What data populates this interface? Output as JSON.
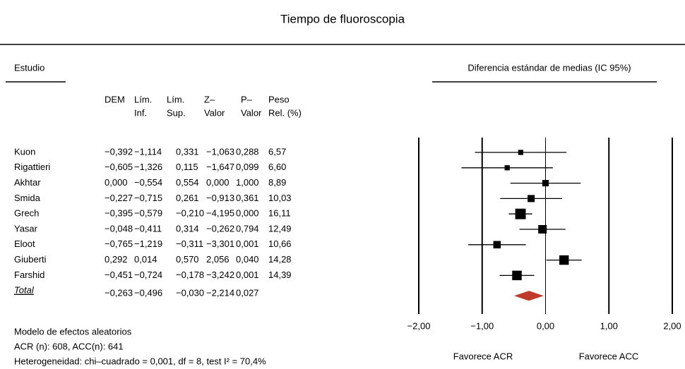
{
  "chart_data": {
    "type": "forest",
    "title": "Tiempo de fluoroscopia",
    "study_header": "Estudio",
    "plot_header": "Diferencia estándar de medias (IC 95%)",
    "columns": [
      [
        "DEM"
      ],
      [
        "Lím.",
        "Inf."
      ],
      [
        "Lím.",
        "Sup."
      ],
      [
        "Z–",
        "Valor"
      ],
      [
        "P–",
        "Valor"
      ],
      [
        "Peso",
        "Rel. (%)"
      ]
    ],
    "categories": [
      "Kuon",
      "Rigattieri",
      "Akhtar",
      "Smida",
      "Grech",
      "Yasar",
      "Eloot",
      "Giuberti",
      "Farshid"
    ],
    "series": [
      {
        "values": [
          -0.392,
          -0.605,
          0.0,
          -0.227,
          -0.395,
          -0.048,
          -0.765,
          0.292,
          -0.451
        ],
        "value_labels": [
          "−0,392",
          "−0,605",
          "0,000",
          "−0,227",
          "−0,395",
          "−0,048",
          "−0,765",
          "0,292",
          "−0,451"
        ]
      },
      {
        "values": [
          -1.114,
          -1.326,
          -0.554,
          -0.715,
          -0.579,
          -0.411,
          -1.219,
          0.014,
          -0.724
        ],
        "value_labels": [
          "−1,114",
          "−1,326",
          "−0,554",
          "−0,715",
          "−0,579",
          "−0,411",
          "−1,219",
          "0,014",
          "−0,724"
        ]
      },
      {
        "values": [
          0.331,
          0.115,
          0.554,
          0.261,
          -0.21,
          0.314,
          -0.311,
          0.57,
          -0.178
        ],
        "value_labels": [
          "0,331",
          "0,115",
          "0,554",
          "0,261",
          "−0,210",
          "0,314",
          "−0,311",
          "0,570",
          "−0,178"
        ]
      },
      {
        "values": [
          -1.063,
          -1.647,
          0.0,
          -0.913,
          -4.195,
          -0.262,
          -3.301,
          2.056,
          -3.242
        ],
        "value_labels": [
          "−1,063",
          "−1,647",
          "0,000",
          "−0,913",
          "−4,195",
          "−0,262",
          "−3,301",
          "2,056",
          "−3,242"
        ]
      },
      {
        "values": [
          0.288,
          0.099,
          1.0,
          0.361,
          0.0,
          0.794,
          0.001,
          0.04,
          0.001
        ],
        "value_labels": [
          "0,288",
          "0,099",
          "1,000",
          "0,361",
          "0,000",
          "0,794",
          "0,001",
          "0,040",
          "0,001"
        ]
      },
      {
        "values": [
          6.57,
          6.6,
          8.89,
          10.03,
          16.11,
          12.49,
          10.66,
          14.28,
          14.39
        ],
        "value_labels": [
          "6,57",
          "6,60",
          "8,89",
          "10,03",
          "16,11",
          "12,49",
          "10,66",
          "14,28",
          "14,39"
        ]
      }
    ],
    "total": {
      "label": "Total",
      "values": [
        -0.263,
        -0.496,
        -0.03,
        -2.214,
        0.027
      ],
      "value_labels": [
        "−0,263",
        "−0,496",
        "−0,030",
        "−2,214",
        "0,027"
      ]
    },
    "color": "#000000",
    "total_color": "#c0392b",
    "xlim": [
      -2,
      2
    ],
    "xticks": [
      {
        "value": -2,
        "label": "−2,00"
      },
      {
        "value": -1,
        "label": "−1,00"
      },
      {
        "value": 0,
        "label": "0,00"
      },
      {
        "value": 1,
        "label": "1,00"
      },
      {
        "value": 2,
        "label": "2,00"
      }
    ],
    "favors": [
      "Favorece ACR",
      "Favorece ACC"
    ],
    "notes": [
      "Modelo de efectos aleatorios",
      "ACR (n): 608, ACC(n): 641",
      "Heterogeneidad: chi–cuadrado = 0,001, df = 8, test I² = 70,4%"
    ]
  }
}
